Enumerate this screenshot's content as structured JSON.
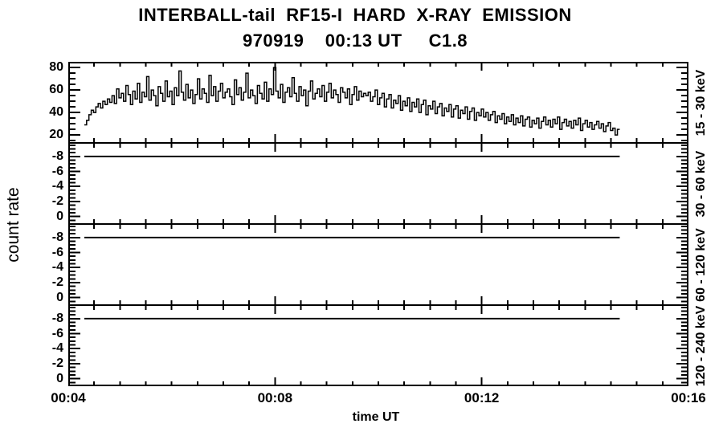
{
  "chart_data": {
    "type": "line",
    "title": "INTERBALL-tail  RF15-I  HARD  X-RAY  EMISSION",
    "subtitle": "970919    00:13 UT     C1.8",
    "xlabel": "time UT",
    "ylabel": "count rate",
    "background": "#ffffff",
    "line_color": "#000000",
    "grid": false,
    "legend_position": "none",
    "x_start_min": 4,
    "x_end_min": 16,
    "x_minor_step_min": 0.5,
    "x_tick_labels": [
      {
        "label": "00:04",
        "min": 4
      },
      {
        "label": "00:08",
        "min": 8
      },
      {
        "label": "00:12",
        "min": 12
      },
      {
        "label": "00:16",
        "min": 16
      }
    ],
    "data_start_ut": "00:04:19",
    "data_end_ut": "00:14:40",
    "data_t_start_min": 4.31,
    "data_t_end_min": 14.67,
    "panels": [
      {
        "name": "15 - 30 keV",
        "ylim_top": 85.1,
        "ylim_bottom": 12.9,
        "yticks": [
          80,
          60,
          40,
          20
        ],
        "y_minor_step": 5,
        "series_type": "step",
        "values": [
          29,
          33,
          38,
          42,
          40,
          45,
          48,
          44,
          50,
          47,
          52,
          49,
          55,
          48,
          61,
          53,
          57,
          50,
          64,
          56,
          47,
          59,
          52,
          66,
          49,
          58,
          54,
          72,
          51,
          60,
          55,
          46,
          63,
          57,
          50,
          68,
          54,
          59,
          47,
          62,
          55,
          77,
          58,
          51,
          65,
          53,
          60,
          48,
          56,
          70,
          52,
          61,
          57,
          49,
          73,
          55,
          63,
          50,
          59,
          66,
          53,
          58,
          61,
          54,
          47,
          69,
          56,
          62,
          51,
          58,
          75,
          53,
          60,
          55,
          48,
          64,
          57,
          52,
          67,
          50,
          61,
          56,
          80,
          59,
          53,
          65,
          49,
          58,
          62,
          54,
          71,
          57,
          50,
          63,
          55,
          60,
          46,
          59,
          68,
          52,
          57,
          61,
          54,
          64,
          50,
          58,
          66,
          53,
          60,
          56,
          49,
          62,
          58,
          53,
          61,
          47,
          56,
          63,
          51,
          59,
          54,
          57,
          55,
          58,
          50,
          54,
          60,
          47,
          53,
          57,
          45,
          52,
          56,
          44,
          51,
          48,
          55,
          42,
          50,
          46,
          53,
          41,
          49,
          45,
          52,
          40,
          47,
          51,
          38,
          46,
          43,
          50,
          39,
          45,
          48,
          37,
          44,
          41,
          47,
          36,
          43,
          46,
          35,
          42,
          39,
          45,
          34,
          41,
          44,
          33,
          40,
          37,
          43,
          36,
          40,
          33,
          38,
          41,
          31,
          37,
          34,
          39,
          30,
          36,
          32,
          38,
          29,
          35,
          31,
          37,
          28,
          34,
          36,
          27,
          33,
          30,
          35,
          26,
          32,
          36,
          29,
          33,
          27,
          34,
          30,
          36,
          25,
          31,
          34,
          28,
          32,
          26,
          33,
          29,
          35,
          24,
          30,
          33,
          27,
          31,
          25,
          29,
          32,
          26,
          30,
          23,
          28,
          31,
          24,
          26,
          20,
          25
        ]
      },
      {
        "name": "30 - 60 keV",
        "ylim_top": -9.8,
        "ylim_bottom": 1.0,
        "yticks": [
          -8,
          -6,
          -4,
          -2,
          0
        ],
        "y_minor_step": 0.5,
        "series_type": "constant",
        "constant_value": -8
      },
      {
        "name": "60 - 120 keV",
        "ylim_top": -9.8,
        "ylim_bottom": 1.0,
        "yticks": [
          -8,
          -6,
          -4,
          -2,
          0
        ],
        "y_minor_step": 0.5,
        "series_type": "constant",
        "constant_value": -8
      },
      {
        "name": "120 - 240 keV",
        "ylim_top": -9.8,
        "ylim_bottom": 1.0,
        "yticks": [
          -8,
          -6,
          -4,
          -2,
          0
        ],
        "y_minor_step": 0.5,
        "series_type": "constant",
        "constant_value": -8
      }
    ]
  }
}
